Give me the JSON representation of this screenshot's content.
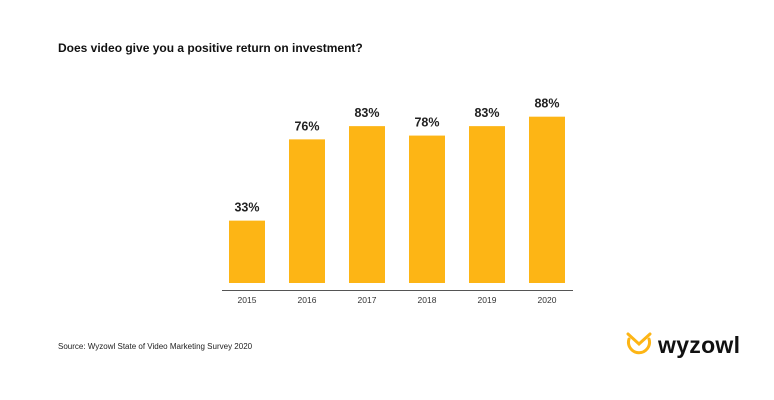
{
  "title": "Does video give you a positive return on investment?",
  "source": "Source: Wyzowl State of Video Marketing Survey 2020",
  "logo": "wyzowl",
  "chart_data": {
    "type": "bar",
    "title": "Does video give you a positive return on investment?",
    "categories": [
      "2015",
      "2016",
      "2017",
      "2018",
      "2019",
      "2020"
    ],
    "values": [
      33,
      76,
      83,
      78,
      83,
      88
    ],
    "labels": [
      "33%",
      "76%",
      "83%",
      "78%",
      "83%",
      "88%"
    ],
    "xlabel": "",
    "ylabel": "",
    "ylim": [
      0,
      100
    ],
    "grid": false,
    "bar_color": "#FDB515"
  }
}
